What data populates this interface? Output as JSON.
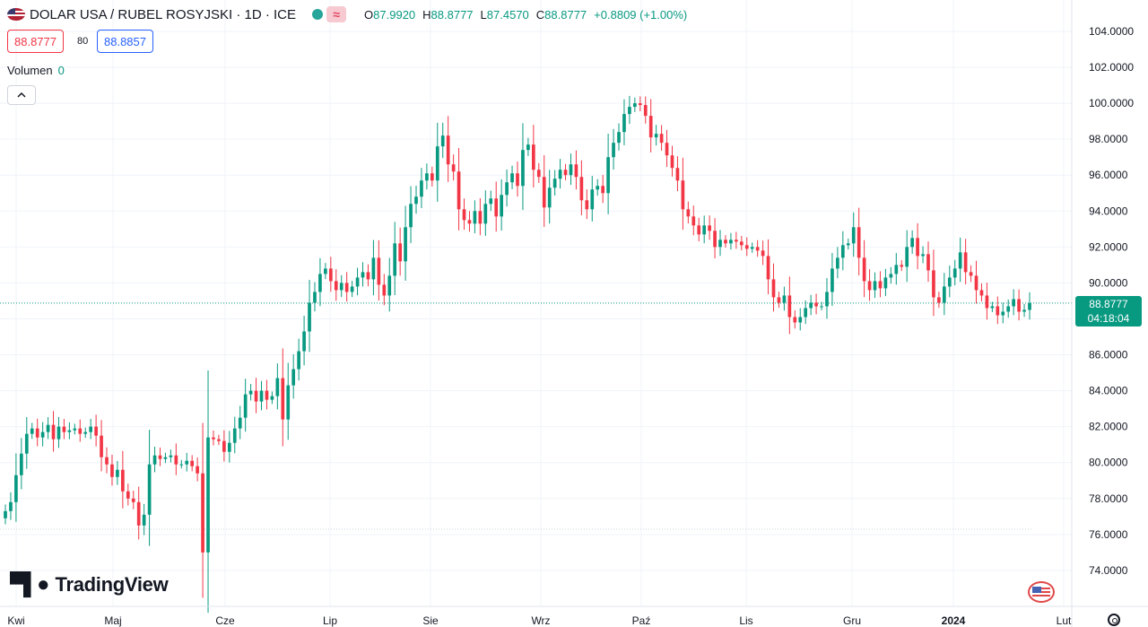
{
  "header": {
    "title": "DOLAR USA / RUBEL ROSYJSKI · 1D · ICE",
    "open_label": "O",
    "open_value": "87.9920",
    "high_label": "H",
    "high_value": "88.8777",
    "low_label": "L",
    "low_value": "87.4570",
    "close_label": "C",
    "close_value": "88.8777",
    "change": "+0.8809 (+1.00%)"
  },
  "trade": {
    "sell": "88.8777",
    "spread": "80",
    "buy": "88.8857"
  },
  "volume": {
    "label": "Volumen",
    "value": "0"
  },
  "collapse_icon": "chevron-up-icon",
  "logo_text": "TradingView",
  "current": {
    "price": "88.8777",
    "countdown": "04:18:04"
  },
  "colors": {
    "up": "#089981",
    "down": "#f23645",
    "grid": "#f0f3fa",
    "axis_text": "#131722"
  },
  "chart_data": {
    "type": "candlestick",
    "y_ticks": [
      "104.0000",
      "102.0000",
      "100.0000",
      "98.0000",
      "96.0000",
      "94.0000",
      "92.0000",
      "90.0000",
      "88.0000",
      "86.0000",
      "84.0000",
      "82.0000",
      "80.0000",
      "78.0000",
      "76.0000",
      "74.0000"
    ],
    "ylim": [
      73.0,
      105.0
    ],
    "x_labels": [
      {
        "label": "Kwi",
        "bold": false
      },
      {
        "label": "Maj",
        "bold": false
      },
      {
        "label": "Cze",
        "bold": false
      },
      {
        "label": "Lip",
        "bold": false
      },
      {
        "label": "Sie",
        "bold": false
      },
      {
        "label": "Wrz",
        "bold": false
      },
      {
        "label": "Paź",
        "bold": false
      },
      {
        "label": "Lis",
        "bold": false
      },
      {
        "label": "Gru",
        "bold": false
      },
      {
        "label": "2024",
        "bold": true
      },
      {
        "label": "Lut",
        "bold": false
      }
    ],
    "current_price_line": 88.8777,
    "reference_line": 76.3,
    "closes": [
      77.3,
      77.8,
      79.3,
      80.5,
      81.6,
      81.9,
      81.4,
      81.7,
      82.1,
      81.3,
      82.0,
      81.7,
      81.8,
      81.9,
      81.6,
      81.7,
      82.0,
      81.5,
      80.3,
      79.9,
      79.2,
      79.6,
      78.4,
      78.0,
      77.8,
      76.5,
      77.1,
      79.9,
      80.4,
      80.2,
      80.3,
      80.4,
      79.9,
      79.9,
      80.1,
      79.8,
      79.4,
      75.0,
      81.4,
      81.3,
      81.2,
      80.6,
      81.1,
      81.9,
      82.5,
      83.8,
      84.0,
      83.4,
      84.0,
      83.5,
      83.7,
      84.7,
      82.4,
      84.3,
      85.2,
      86.2,
      87.3,
      88.9,
      89.5,
      90.5,
      90.8,
      90.1,
      89.6,
      90.0,
      89.5,
      89.8,
      90.3,
      90.6,
      90.2,
      91.4,
      89.9,
      89.3,
      90.4,
      92.2,
      91.2,
      93.1,
      94.4,
      94.8,
      95.7,
      96.1,
      95.7,
      97.6,
      98.2,
      96.6,
      96.2,
      94.1,
      93.5,
      93.3,
      94.0,
      93.3,
      94.4,
      94.7,
      93.7,
      94.9,
      95.6,
      96.1,
      95.4,
      97.4,
      97.7,
      96.3,
      95.9,
      94.2,
      95.3,
      95.8,
      96.3,
      96.0,
      96.6,
      95.9,
      94.6,
      94.1,
      95.2,
      95.4,
      95.0,
      97.0,
      97.8,
      98.4,
      99.4,
      99.8,
      100.0,
      99.9,
      99.3,
      98.1,
      98.3,
      97.8,
      97.1,
      96.4,
      95.7,
      94.1,
      93.7,
      93.2,
      92.7,
      93.2,
      92.9,
      92.0,
      92.4,
      92.2,
      92.4,
      92.3,
      92.1,
      91.9,
      92.0,
      91.8,
      91.5,
      90.2,
      89.2,
      88.9,
      89.3,
      88.1,
      87.8,
      88.1,
      88.6,
      88.9,
      88.7,
      88.7,
      89.5,
      90.8,
      91.4,
      92.1,
      92.2,
      93.1,
      91.4,
      90.1,
      89.6,
      90.1,
      89.7,
      90.3,
      90.5,
      91.0,
      90.9,
      92.0,
      92.5,
      91.5,
      91.6,
      90.7,
      89.2,
      88.9,
      89.8,
      90.3,
      90.8,
      91.7,
      90.6,
      90.4,
      89.6,
      89.3,
      88.6,
      88.7,
      88.2,
      88.4,
      88.7,
      89.1,
      88.4,
      88.5,
      88.88
    ]
  }
}
